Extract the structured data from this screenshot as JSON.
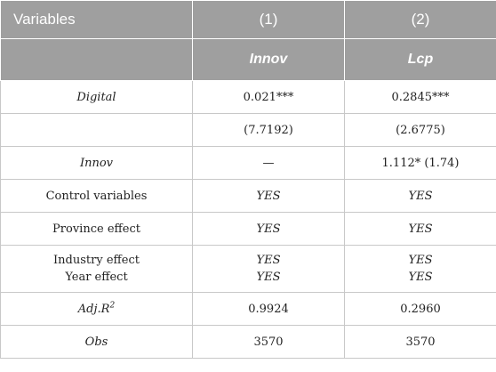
{
  "header": {
    "variables_label": "Variables",
    "col1_number": "(1)",
    "col2_number": "(2)",
    "col1_dep": "Innov",
    "col2_dep": "Lcp"
  },
  "rows": {
    "digital": {
      "label": "Digital",
      "col1": "0.021***",
      "col2": "0.2845***"
    },
    "digital_t": {
      "col1": "(7.7192)",
      "col2": "(2.6775)"
    },
    "innov": {
      "label": "Innov",
      "col1": "—",
      "col2": "1.112* (1.74)"
    },
    "control": {
      "label": "Control variables",
      "col1": "YES",
      "col2": "YES"
    },
    "province": {
      "label": "Province effect",
      "col1": "YES",
      "col2": "YES"
    },
    "industry": {
      "label": "Industry effect",
      "col1": "YES",
      "col2": "YES"
    },
    "year": {
      "label": "Year effect",
      "col1": "YES",
      "col2": "YES"
    },
    "adjr2": {
      "label": "Adj.R",
      "label_sup": "2",
      "col1": "0.9924",
      "col2": "0.2960"
    },
    "obs": {
      "label": "Obs",
      "col1": "3570",
      "col2": "3570"
    }
  },
  "colors": {
    "header_bg": "#9f9f9f",
    "header_text": "#ffffff",
    "grid": "#c8c8c8"
  }
}
